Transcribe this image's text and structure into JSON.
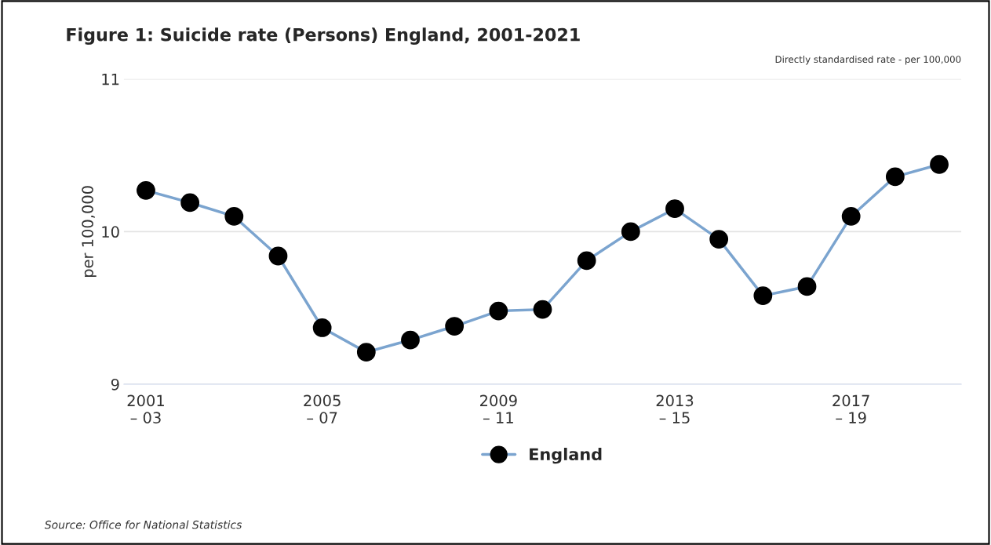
{
  "chart_data": {
    "type": "line",
    "title": "Figure 1: Suicide rate (Persons) England, 2001-2021",
    "subtitle": "Directly standardised rate - per 100,000",
    "ylabel": "per 100,000",
    "categories": [
      "2001\n– 03",
      null,
      null,
      null,
      "2005\n– 07",
      null,
      null,
      null,
      "2009\n– 11",
      null,
      null,
      null,
      "2013\n– 15",
      null,
      null,
      null,
      "2017\n– 19",
      null,
      null
    ],
    "series": [
      {
        "name": "England",
        "color": "#7ba4cf",
        "colors": [
          "#000000",
          "#000000",
          "#000000",
          "#000000",
          "#000000",
          "#000000",
          "#000000",
          "#000000",
          "#000000",
          "#000000",
          "#000000",
          "#000000",
          "#000000",
          "#000000",
          "#000000",
          "#000000",
          "#000000",
          "#000000",
          "#000000"
        ],
        "values": [
          10.27,
          10.19,
          10.1,
          9.84,
          9.37,
          9.21,
          9.29,
          9.38,
          9.48,
          9.49,
          9.81,
          10.0,
          10.15,
          9.95,
          9.58,
          9.64,
          10.1,
          10.36,
          10.44
        ]
      }
    ],
    "ylim": [
      9,
      11
    ],
    "yticks": [
      9,
      10,
      11
    ],
    "grid": "y",
    "legend": "bottom",
    "marker": "circle",
    "line_style": "solid",
    "annotations": [
      "Source: Office for National Statistics"
    ]
  }
}
